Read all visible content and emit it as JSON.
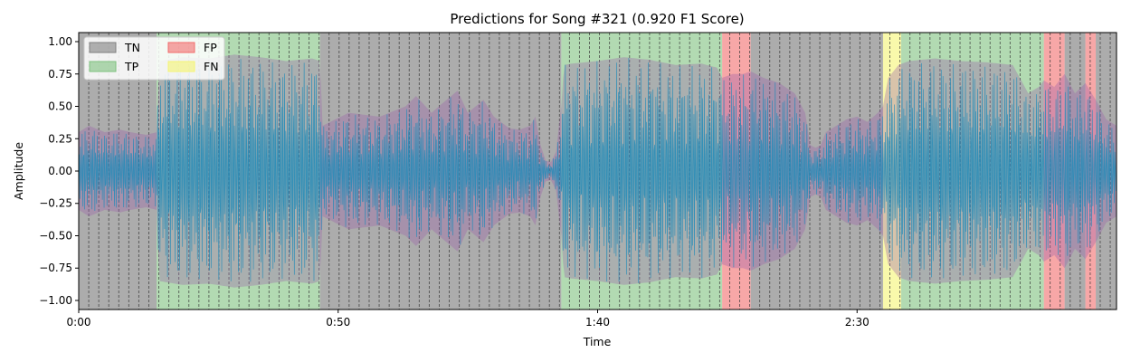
{
  "chart_data": {
    "type": "area",
    "title": "Predictions for Song #321 (0.920 F1 Score)",
    "xlabel": "Time",
    "ylabel": "Amplitude",
    "xlim": [
      0,
      200
    ],
    "ylim": [
      -1.07,
      1.07
    ],
    "x_ticks": [
      {
        "value": 0,
        "label": "0:00"
      },
      {
        "value": 50,
        "label": "0:50"
      },
      {
        "value": 100,
        "label": "1:40"
      },
      {
        "value": 150,
        "label": "2:30"
      }
    ],
    "y_ticks": [
      {
        "value": 1.0,
        "label": "1.00"
      },
      {
        "value": 0.75,
        "label": "0.75"
      },
      {
        "value": 0.5,
        "label": "0.50"
      },
      {
        "value": 0.25,
        "label": "0.25"
      },
      {
        "value": 0.0,
        "label": "0.00"
      },
      {
        "value": -0.25,
        "label": "−0.25"
      },
      {
        "value": -0.5,
        "label": "−0.50"
      },
      {
        "value": -0.75,
        "label": "−0.75"
      },
      {
        "value": -1.0,
        "label": "−1.00"
      }
    ],
    "legend": {
      "placement": "top-left",
      "entries": [
        {
          "key": "TN",
          "label": "TN",
          "color": "#808080"
        },
        {
          "key": "TP",
          "label": "TP",
          "color": "#7ec17e"
        },
        {
          "key": "FP",
          "label": "FP",
          "color": "#f26d6d"
        },
        {
          "key": "FN",
          "label": "FN",
          "color": "#f5f573"
        }
      ]
    },
    "segments": [
      {
        "start": 0.0,
        "end": 15.0,
        "label": "TN"
      },
      {
        "start": 15.0,
        "end": 46.5,
        "label": "TP"
      },
      {
        "start": 46.5,
        "end": 93.0,
        "label": "TN"
      },
      {
        "start": 93.0,
        "end": 124.0,
        "label": "TP"
      },
      {
        "start": 124.0,
        "end": 129.5,
        "label": "FP"
      },
      {
        "start": 129.5,
        "end": 155.0,
        "label": "TN"
      },
      {
        "start": 155.0,
        "end": 158.5,
        "label": "FN"
      },
      {
        "start": 158.5,
        "end": 186.0,
        "label": "TP"
      },
      {
        "start": 186.0,
        "end": 190.0,
        "label": "FP"
      },
      {
        "start": 190.0,
        "end": 194.0,
        "label": "TN"
      },
      {
        "start": 194.0,
        "end": 196.0,
        "label": "FP"
      },
      {
        "start": 196.0,
        "end": 200.0,
        "label": "TN"
      }
    ],
    "beat_interval": 1.93,
    "envelope": {
      "x": [
        0,
        2,
        5,
        8,
        10,
        13,
        15,
        15.5,
        20,
        25,
        30,
        35,
        40,
        45,
        46.5,
        47,
        52,
        58,
        63,
        65,
        68,
        70,
        73,
        75,
        78,
        80,
        83,
        85,
        87,
        88,
        89,
        90,
        91,
        92,
        93,
        93.5,
        95,
        100,
        105,
        110,
        115,
        120,
        123,
        124,
        126,
        128,
        129.5,
        132,
        135,
        138,
        140,
        141,
        142,
        143,
        144,
        146,
        148,
        150,
        152,
        154,
        155,
        156,
        158,
        160,
        165,
        170,
        175,
        180,
        183,
        185,
        186,
        188,
        190,
        192,
        194,
        196,
        198,
        200
      ],
      "amplitude": [
        0.3,
        0.35,
        0.3,
        0.32,
        0.3,
        0.28,
        0.3,
        0.85,
        0.88,
        0.87,
        0.9,
        0.88,
        0.85,
        0.87,
        0.85,
        0.35,
        0.45,
        0.42,
        0.5,
        0.58,
        0.45,
        0.52,
        0.62,
        0.45,
        0.55,
        0.42,
        0.33,
        0.32,
        0.35,
        0.42,
        0.2,
        0.08,
        0.07,
        0.15,
        0.5,
        0.82,
        0.83,
        0.85,
        0.88,
        0.86,
        0.82,
        0.83,
        0.8,
        0.72,
        0.75,
        0.75,
        0.77,
        0.72,
        0.68,
        0.6,
        0.45,
        0.2,
        0.18,
        0.2,
        0.3,
        0.35,
        0.4,
        0.42,
        0.38,
        0.45,
        0.5,
        0.72,
        0.82,
        0.85,
        0.87,
        0.85,
        0.84,
        0.82,
        0.6,
        0.65,
        0.7,
        0.65,
        0.75,
        0.6,
        0.68,
        0.55,
        0.4,
        0.35
      ]
    },
    "colors": {
      "waveform": "#1f8bb8",
      "waveform_fill": "#1a7fc0",
      "beat_line": "#333333",
      "overlay_tint": "#9b5fa8"
    },
    "grid": false
  }
}
